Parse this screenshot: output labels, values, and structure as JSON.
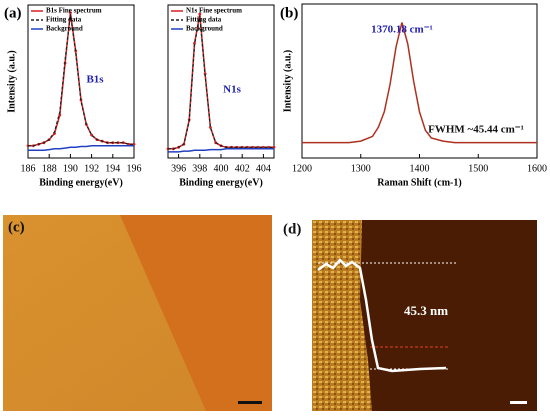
{
  "panel_labels": [
    "(a)",
    "(b)"
  ],
  "chart_data": [
    {
      "type": "line",
      "x": [
        186,
        186.5,
        187,
        187.5,
        188,
        188.5,
        189,
        189.5,
        190,
        190.5,
        191,
        191.5,
        192,
        192.5,
        193,
        193.5,
        194,
        194.5,
        195,
        195.5,
        196
      ],
      "series": [
        {
          "name": "B1s Fine spectrum",
          "color": "#d62020",
          "marker": "circle",
          "values": [
            8,
            8,
            9,
            10,
            12,
            16,
            28,
            62,
            95,
            70,
            38,
            22,
            15,
            12,
            11,
            10,
            10,
            10,
            10,
            9,
            9
          ]
        },
        {
          "name": "Fitting data",
          "color": "#222222",
          "dash": true,
          "values": [
            8,
            8,
            9,
            10,
            12,
            17,
            30,
            64,
            94,
            69,
            37,
            22,
            15,
            12,
            11,
            10,
            10,
            10,
            10,
            9,
            9
          ]
        },
        {
          "name": "Background",
          "color": "#2040c0",
          "values": [
            5,
            5,
            5,
            5,
            5.5,
            6,
            6,
            6.5,
            7,
            7,
            7.5,
            7.5,
            8,
            8,
            8,
            8,
            8,
            8,
            8,
            8,
            8
          ]
        }
      ],
      "xlim": [
        186,
        196
      ],
      "xticks": [
        186,
        188,
        190,
        192,
        194,
        196
      ],
      "ylim": [
        0,
        100
      ],
      "xlabel": "Binding energy(eV)",
      "ylabel": "Intensity (a.u.)",
      "annotations": [
        {
          "text": "B1s",
          "color": "#2020b0"
        }
      ]
    },
    {
      "type": "line",
      "x": [
        395,
        395.5,
        396,
        396.5,
        397,
        397.5,
        398,
        398.5,
        399,
        399.5,
        400,
        400.5,
        401,
        401.5,
        402,
        402.5,
        403,
        403.5,
        404,
        404.5,
        405
      ],
      "series": [
        {
          "name": "N1s Fine spectrum",
          "color": "#d62020",
          "marker": "circle",
          "values": [
            6,
            6,
            7,
            9,
            25,
            75,
            94,
            55,
            20,
            10,
            8,
            7,
            7,
            7,
            7,
            7,
            7,
            7,
            7,
            7,
            7
          ]
        },
        {
          "name": "Fitting data",
          "color": "#222222",
          "dash": true,
          "values": [
            6,
            6,
            7,
            9,
            24,
            74,
            93,
            54,
            20,
            10,
            8,
            7,
            7,
            7,
            7,
            7,
            7,
            7,
            7,
            7,
            7
          ]
        },
        {
          "name": "Background",
          "color": "#2040c0",
          "values": [
            4,
            4,
            4,
            4.5,
            4.5,
            5,
            5,
            5,
            5.5,
            5.5,
            5.5,
            6,
            6,
            6,
            6,
            6,
            6,
            6,
            6,
            6,
            6
          ]
        }
      ],
      "xlim": [
        395,
        405
      ],
      "xticks": [
        396,
        398,
        400,
        402,
        404
      ],
      "ylim": [
        0,
        100
      ],
      "xlabel": "Binding energy(eV)",
      "annotations": [
        {
          "text": "N1s",
          "color": "#2020b0"
        }
      ]
    },
    {
      "type": "line",
      "x": [
        1200,
        1220,
        1240,
        1260,
        1280,
        1300,
        1320,
        1330,
        1340,
        1350,
        1360,
        1370,
        1380,
        1390,
        1400,
        1410,
        1420,
        1440,
        1460,
        1480,
        1500,
        1520,
        1540,
        1560,
        1580,
        1600
      ],
      "color": "#b03020",
      "values": [
        10,
        10,
        10,
        10,
        10,
        11,
        14,
        20,
        30,
        48,
        72,
        88,
        74,
        50,
        30,
        18,
        13,
        11,
        10,
        10,
        10,
        10,
        10,
        10,
        10,
        10
      ],
      "xlim": [
        1200,
        1600
      ],
      "xticks": [
        1200,
        1300,
        1400,
        1500,
        1600
      ],
      "ylim": [
        0,
        100
      ],
      "xlabel": "Raman Shift (cm-1)",
      "ylabel": "Intensity (a.u.)",
      "annotations": [
        {
          "text": "1370.18 cm⁻¹",
          "color": "#2020b0"
        },
        {
          "text": "FWHM ~45.44 cm⁻¹",
          "color": "#111111"
        }
      ]
    }
  ],
  "images": [
    {
      "label": "(c)"
    },
    {
      "label": "(d)",
      "annotation": "45.3 nm"
    }
  ]
}
